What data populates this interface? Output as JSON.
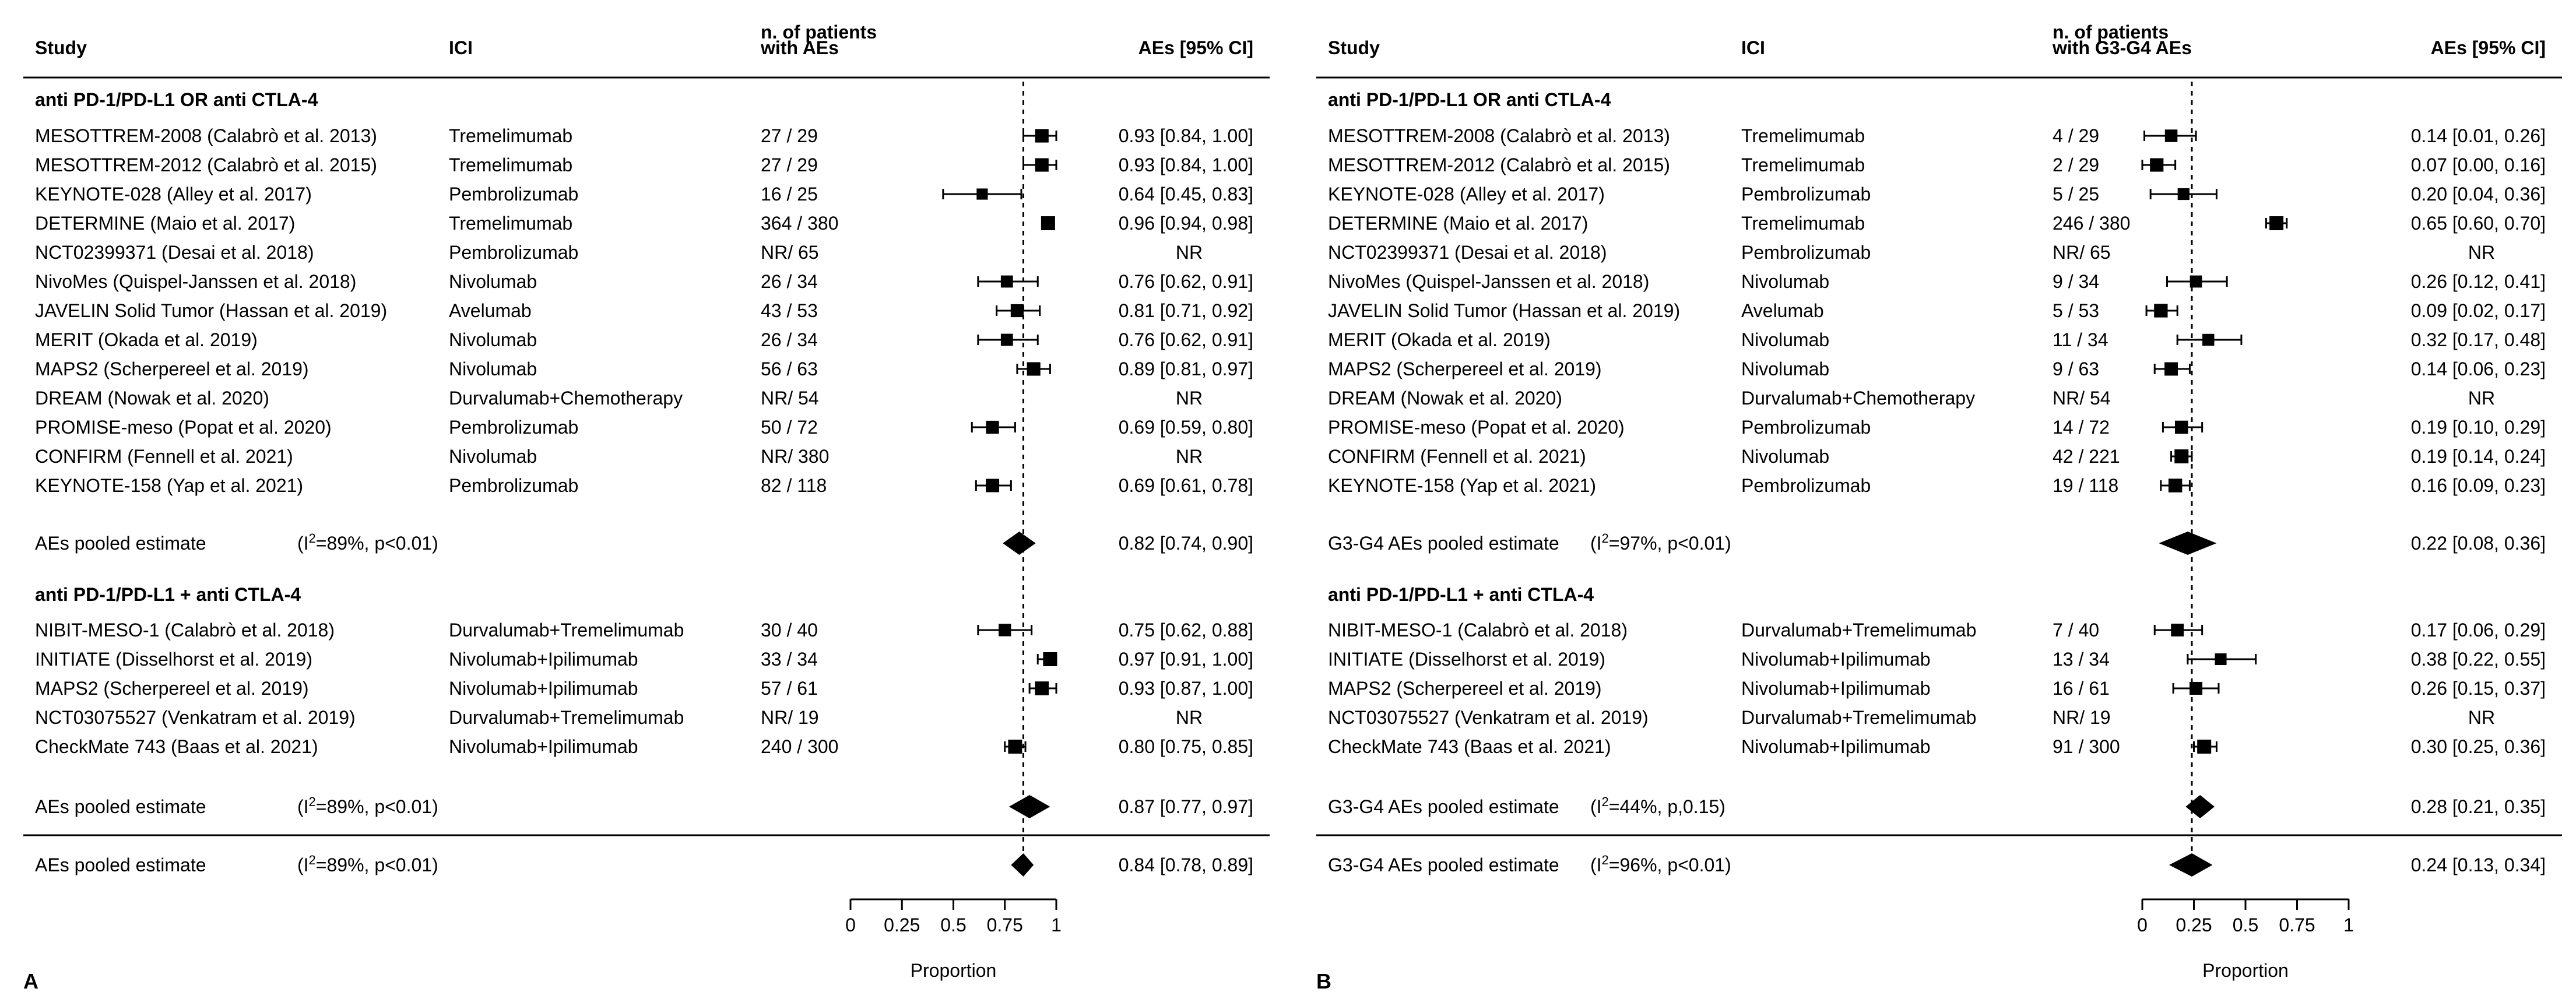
{
  "chart_data": [
    {
      "type": "forest",
      "panel_label": "A",
      "columns": {
        "study": "Study",
        "ici": "ICI",
        "n_line1": "n. of patients",
        "n_line2": "with AEs",
        "effect": "AEs [95% CI]"
      },
      "groups": [
        {
          "title": "anti PD-1/PD-L1 OR anti CTLA-4",
          "rows": [
            {
              "study": "MESOTTREM-2008 (Calabrò et al. 2013)",
              "ici": "Tremelimumab",
              "n": "27 / 29",
              "est": 0.93,
              "lo": 0.84,
              "hi": 1.0,
              "label": "0.93 [0.84, 1.00]"
            },
            {
              "study": "MESOTTREM-2012 (Calabrò et al. 2015)",
              "ici": "Tremelimumab",
              "n": "27 / 29",
              "est": 0.93,
              "lo": 0.84,
              "hi": 1.0,
              "label": "0.93 [0.84, 1.00]"
            },
            {
              "study": "KEYNOTE-028 (Alley et al. 2017)",
              "ici": "Pembrolizumab",
              "n": "16 / 25",
              "est": 0.64,
              "lo": 0.45,
              "hi": 0.83,
              "label": "0.64 [0.45, 0.83]"
            },
            {
              "study": "DETERMINE (Maio et al. 2017)",
              "ici": "Tremelimumab",
              "n": "364 / 380",
              "est": 0.96,
              "lo": 0.94,
              "hi": 0.98,
              "label": "0.96 [0.94, 0.98]"
            },
            {
              "study": "NCT02399371 (Desai et al. 2018)",
              "ici": "Pembrolizumab",
              "n": "NR/ 65",
              "est": null,
              "lo": null,
              "hi": null,
              "label": "NR"
            },
            {
              "study": "NivoMes (Quispel-Janssen et al. 2018)",
              "ici": "Nivolumab",
              "n": "26 / 34",
              "est": 0.76,
              "lo": 0.62,
              "hi": 0.91,
              "label": "0.76 [0.62, 0.91]"
            },
            {
              "study": "JAVELIN Solid Tumor (Hassan et al. 2019)",
              "ici": "Avelumab",
              "n": "43 / 53",
              "est": 0.81,
              "lo": 0.71,
              "hi": 0.92,
              "label": "0.81 [0.71, 0.92]"
            },
            {
              "study": "MERIT (Okada et al. 2019)",
              "ici": "Nivolumab",
              "n": "26 / 34",
              "est": 0.76,
              "lo": 0.62,
              "hi": 0.91,
              "label": "0.76 [0.62, 0.91]"
            },
            {
              "study": "MAPS2 (Scherpereel et al. 2019)",
              "ici": "Nivolumab",
              "n": "56 / 63",
              "est": 0.89,
              "lo": 0.81,
              "hi": 0.97,
              "label": "0.89 [0.81, 0.97]"
            },
            {
              "study": "DREAM (Nowak et al. 2020)",
              "ici": "Durvalumab+Chemotherapy",
              "n": "NR/ 54",
              "est": null,
              "lo": null,
              "hi": null,
              "label": "NR"
            },
            {
              "study": "PROMISE-meso (Popat et al. 2020)",
              "ici": "Pembrolizumab",
              "n": "50 / 72",
              "est": 0.69,
              "lo": 0.59,
              "hi": 0.8,
              "label": "0.69 [0.59, 0.80]"
            },
            {
              "study": "CONFIRM (Fennell et al. 2021)",
              "ici": "Nivolumab",
              "n": "NR/ 380",
              "est": null,
              "lo": null,
              "hi": null,
              "label": "NR"
            },
            {
              "study": "KEYNOTE-158 (Yap et al. 2021)",
              "ici": "Pembrolizumab",
              "n": "82 / 118",
              "est": 0.69,
              "lo": 0.61,
              "hi": 0.78,
              "label": "0.69 [0.61, 0.78]"
            }
          ],
          "pooled": {
            "name": "AEs pooled estimate",
            "i2": "89%",
            "p": "p<0.01",
            "est": 0.82,
            "lo": 0.74,
            "hi": 0.9,
            "label": "0.82 [0.74, 0.90]"
          }
        },
        {
          "title": "anti PD-1/PD-L1 + anti CTLA-4",
          "rows": [
            {
              "study": "NIBIT-MESO-1 (Calabrò et al. 2018)",
              "ici": "Durvalumab+Tremelimumab",
              "n": "30 / 40",
              "est": 0.75,
              "lo": 0.62,
              "hi": 0.88,
              "label": "0.75 [0.62, 0.88]"
            },
            {
              "study": "INITIATE (Disselhorst et al. 2019)",
              "ici": "Nivolumab+Ipilimumab",
              "n": "33 / 34",
              "est": 0.97,
              "lo": 0.91,
              "hi": 1.0,
              "label": "0.97 [0.91, 1.00]"
            },
            {
              "study": "MAPS2 (Scherpereel et al. 2019)",
              "ici": "Nivolumab+Ipilimumab",
              "n": "57 / 61",
              "est": 0.93,
              "lo": 0.87,
              "hi": 1.0,
              "label": "0.93 [0.87, 1.00]"
            },
            {
              "study": "NCT03075527 (Venkatram et al. 2019)",
              "ici": "Durvalumab+Tremelimumab",
              "n": "NR/ 19",
              "est": null,
              "lo": null,
              "hi": null,
              "label": "NR"
            },
            {
              "study": "CheckMate 743 (Baas et al. 2021)",
              "ici": "Nivolumab+Ipilimumab",
              "n": "240 / 300",
              "est": 0.8,
              "lo": 0.75,
              "hi": 0.85,
              "label": "0.80 [0.75, 0.85]"
            }
          ],
          "pooled": {
            "name": "AEs pooled estimate",
            "i2": "89%",
            "p": "p<0.01",
            "est": 0.87,
            "lo": 0.77,
            "hi": 0.97,
            "label": "0.87 [0.77, 0.97]"
          }
        }
      ],
      "overall": {
        "name": "AEs pooled estimate",
        "i2": "89%",
        "p": "p<0.01",
        "est": 0.84,
        "lo": 0.78,
        "hi": 0.89,
        "label": "0.84 [0.78, 0.89]"
      },
      "reference_line": 0.84,
      "xlim": [
        0,
        1
      ],
      "ticks": [
        0,
        0.25,
        0.5,
        0.75,
        1
      ],
      "tick_labels": [
        "0",
        "0.25",
        "0.5",
        "0.75",
        "1"
      ],
      "xlabel": "Proportion"
    },
    {
      "type": "forest",
      "panel_label": "B",
      "columns": {
        "study": "Study",
        "ici": "ICI",
        "n_line1": "n. of patients",
        "n_line2": "with G3-G4 AEs",
        "effect": "AEs [95% CI]"
      },
      "groups": [
        {
          "title": "anti PD-1/PD-L1 OR anti CTLA-4",
          "rows": [
            {
              "study": "MESOTTREM-2008 (Calabrò et al. 2013)",
              "ici": "Tremelimumab",
              "n": "4 / 29",
              "est": 0.14,
              "lo": 0.01,
              "hi": 0.26,
              "label": "0.14 [0.01, 0.26]"
            },
            {
              "study": "MESOTTREM-2012 (Calabrò et al. 2015)",
              "ici": "Tremelimumab",
              "n": "2 / 29",
              "est": 0.07,
              "lo": 0.0,
              "hi": 0.16,
              "label": "0.07 [0.00, 0.16]"
            },
            {
              "study": "KEYNOTE-028 (Alley et al. 2017)",
              "ici": "Pembrolizumab",
              "n": "5 / 25",
              "est": 0.2,
              "lo": 0.04,
              "hi": 0.36,
              "label": "0.20 [0.04, 0.36]"
            },
            {
              "study": "DETERMINE (Maio et al. 2017)",
              "ici": "Tremelimumab",
              "n": "246 / 380",
              "est": 0.65,
              "lo": 0.6,
              "hi": 0.7,
              "label": "0.65 [0.60, 0.70]"
            },
            {
              "study": "NCT02399371 (Desai et al. 2018)",
              "ici": "Pembrolizumab",
              "n": "NR/ 65",
              "est": null,
              "lo": null,
              "hi": null,
              "label": "NR"
            },
            {
              "study": "NivoMes (Quispel-Janssen et al. 2018)",
              "ici": "Nivolumab",
              "n": "9 / 34",
              "est": 0.26,
              "lo": 0.12,
              "hi": 0.41,
              "label": "0.26 [0.12, 0.41]"
            },
            {
              "study": "JAVELIN Solid Tumor (Hassan et al. 2019)",
              "ici": "Avelumab",
              "n": "5 / 53",
              "est": 0.09,
              "lo": 0.02,
              "hi": 0.17,
              "label": "0.09 [0.02, 0.17]"
            },
            {
              "study": "MERIT (Okada et al. 2019)",
              "ici": "Nivolumab",
              "n": "11 / 34",
              "est": 0.32,
              "lo": 0.17,
              "hi": 0.48,
              "label": "0.32 [0.17, 0.48]"
            },
            {
              "study": "MAPS2 (Scherpereel et al. 2019)",
              "ici": "Nivolumab",
              "n": "9 / 63",
              "est": 0.14,
              "lo": 0.06,
              "hi": 0.23,
              "label": "0.14 [0.06, 0.23]"
            },
            {
              "study": "DREAM (Nowak et al. 2020)",
              "ici": "Durvalumab+Chemotherapy",
              "n": "NR/ 54",
              "est": null,
              "lo": null,
              "hi": null,
              "label": "NR"
            },
            {
              "study": "PROMISE-meso (Popat et al. 2020)",
              "ici": "Pembrolizumab",
              "n": "14 / 72",
              "est": 0.19,
              "lo": 0.1,
              "hi": 0.29,
              "label": "0.19 [0.10, 0.29]"
            },
            {
              "study": "CONFIRM (Fennell et al. 2021)",
              "ici": "Nivolumab",
              "n": "42 / 221",
              "est": 0.19,
              "lo": 0.14,
              "hi": 0.24,
              "label": "0.19 [0.14, 0.24]"
            },
            {
              "study": "KEYNOTE-158 (Yap et al. 2021)",
              "ici": "Pembrolizumab",
              "n": "19 / 118",
              "est": 0.16,
              "lo": 0.09,
              "hi": 0.23,
              "label": "0.16 [0.09, 0.23]"
            }
          ],
          "pooled": {
            "name": "G3-G4 AEs pooled estimate",
            "i2": "97%",
            "p": "p<0.01",
            "est": 0.22,
            "lo": 0.08,
            "hi": 0.36,
            "label": "0.22 [0.08, 0.36]"
          }
        },
        {
          "title": "anti PD-1/PD-L1 + anti CTLA-4",
          "rows": [
            {
              "study": "NIBIT-MESO-1 (Calabrò et al. 2018)",
              "ici": "Durvalumab+Tremelimumab",
              "n": "7 / 40",
              "est": 0.17,
              "lo": 0.06,
              "hi": 0.29,
              "label": "0.17 [0.06, 0.29]"
            },
            {
              "study": "INITIATE (Disselhorst et al. 2019)",
              "ici": "Nivolumab+Ipilimumab",
              "n": "13 / 34",
              "est": 0.38,
              "lo": 0.22,
              "hi": 0.55,
              "label": "0.38 [0.22, 0.55]"
            },
            {
              "study": "MAPS2 (Scherpereel et al. 2019)",
              "ici": "Nivolumab+Ipilimumab",
              "n": "16 / 61",
              "est": 0.26,
              "lo": 0.15,
              "hi": 0.37,
              "label": "0.26 [0.15, 0.37]"
            },
            {
              "study": "NCT03075527 (Venkatram et al. 2019)",
              "ici": "Durvalumab+Tremelimumab",
              "n": "NR/ 19",
              "est": null,
              "lo": null,
              "hi": null,
              "label": "NR"
            },
            {
              "study": "CheckMate 743 (Baas et al. 2021)",
              "ici": "Nivolumab+Ipilimumab",
              "n": "91 / 300",
              "est": 0.3,
              "lo": 0.25,
              "hi": 0.36,
              "label": "0.30 [0.25, 0.36]"
            }
          ],
          "pooled": {
            "name": "G3-G4 AEs pooled estimate",
            "i2": "44%",
            "p": "p,0.15",
            "est": 0.28,
            "lo": 0.21,
            "hi": 0.35,
            "label": "0.28 [0.21, 0.35]"
          }
        }
      ],
      "overall": {
        "name": "G3-G4 AEs pooled estimate",
        "i2": "96%",
        "p": "p<0.01",
        "est": 0.24,
        "lo": 0.13,
        "hi": 0.34,
        "label": "0.24 [0.13, 0.34]"
      },
      "reference_line": 0.24,
      "xlim": [
        0,
        1
      ],
      "ticks": [
        0,
        0.25,
        0.5,
        0.75,
        1
      ],
      "tick_labels": [
        "0",
        "0.25",
        "0.5",
        "0.75",
        "1"
      ],
      "xlabel": "Proportion"
    }
  ]
}
